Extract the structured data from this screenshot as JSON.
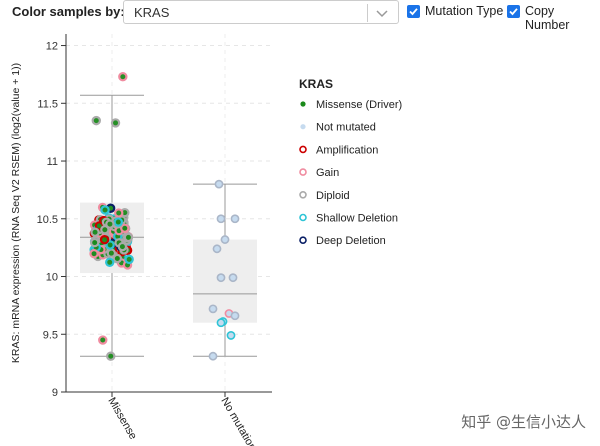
{
  "toolbar": {
    "color_label": "Color samples by:",
    "gene_select_value": "KRAS",
    "mutation_type_label": "Mutation Type *",
    "copy_number_label": "Copy Number"
  },
  "watermark": "知乎 @生信小达人",
  "colors": {
    "missense": "#1a8a1a",
    "not_mutated": "#c6dbef",
    "amplification": "#cc0000",
    "gain": "#f08ca0",
    "diploid": "#aaaaaa",
    "shallow_deletion": "#2ec4d6",
    "deep_deletion": "#0a1f66",
    "checkbox": "#1a73e8"
  },
  "chart_data": {
    "type": "box-scatter",
    "ylabel": "KRAS: mRNA expression (RNA Seq V2 RSEM) (log2(value + 1))",
    "ylim": [
      9,
      12.1
    ],
    "yticks": [
      "9",
      "9.5",
      "10",
      "10.5",
      "11",
      "11.5",
      "12"
    ],
    "categories": [
      "Missense",
      "No mutation"
    ],
    "boxes": [
      {
        "name": "Missense",
        "min": 9.31,
        "q1": 10.03,
        "median": 10.34,
        "q3": 10.64,
        "max": 11.57
      },
      {
        "name": "No mutation",
        "min": 9.31,
        "q1": 9.6,
        "median": 9.85,
        "q3": 10.32,
        "max": 10.8
      }
    ],
    "legend": {
      "title": "KRAS",
      "items": [
        {
          "label": "Missense (Driver)",
          "key": "missense"
        },
        {
          "label": "Not mutated",
          "key": "not_mutated"
        },
        {
          "label": "Amplification",
          "key": "amplification"
        },
        {
          "label": "Gain",
          "key": "gain"
        },
        {
          "label": "Diploid",
          "key": "diploid"
        },
        {
          "label": "Shallow Deletion",
          "key": "shallow_deletion"
        },
        {
          "label": "Deep Deletion",
          "key": "deep_deletion"
        }
      ]
    },
    "no_mutation_points": [
      {
        "y": 10.8,
        "cna": "not_mutated"
      },
      {
        "y": 10.5,
        "cna": "not_mutated"
      },
      {
        "y": 10.5,
        "cna": "not_mutated"
      },
      {
        "y": 10.32,
        "cna": "not_mutated"
      },
      {
        "y": 10.24,
        "cna": "not_mutated"
      },
      {
        "y": 9.99,
        "cna": "not_mutated"
      },
      {
        "y": 9.99,
        "cna": "not_mutated"
      },
      {
        "y": 9.72,
        "cna": "not_mutated"
      },
      {
        "y": 9.68,
        "cna": "gain"
      },
      {
        "y": 9.66,
        "cna": "not_mutated"
      },
      {
        "y": 9.61,
        "cna": "shallow_deletion"
      },
      {
        "y": 9.6,
        "cna": "shallow_deletion"
      },
      {
        "y": 9.49,
        "cna": "shallow_deletion"
      },
      {
        "y": 9.31,
        "cna": "not_mutated"
      }
    ],
    "missense_points": {
      "count": 150,
      "distribution": "jittered, mostly 9.8–11.1, outliers at 11.73 and 9.31",
      "cna_mix": {
        "diploid": 0.45,
        "amplification": 0.15,
        "shallow_deletion": 0.18,
        "gain": 0.2,
        "deep_deletion": 0.02
      }
    }
  }
}
